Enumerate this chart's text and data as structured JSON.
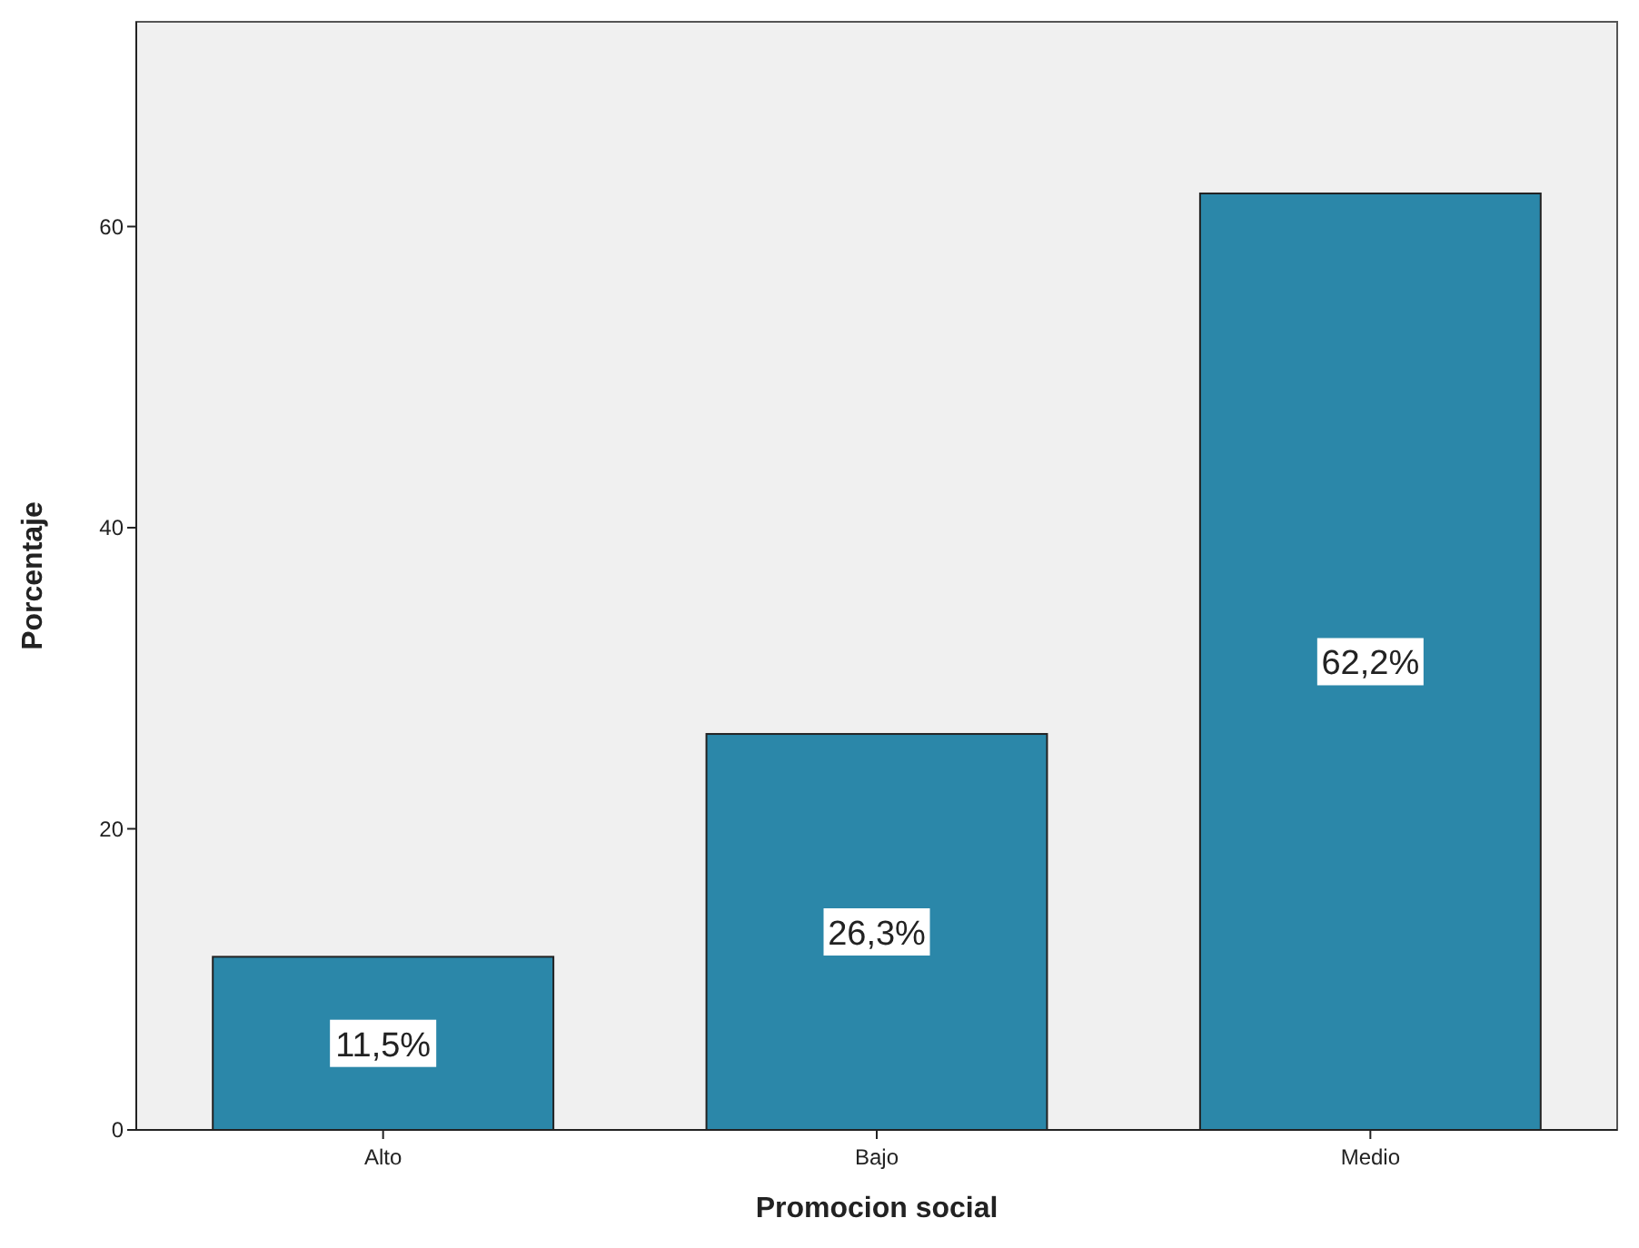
{
  "chart_data": {
    "type": "bar",
    "xlabel": "Promocion social",
    "ylabel": "Porcentaje",
    "categories": [
      "Alto",
      "Bajo",
      "Medio"
    ],
    "values": [
      11.5,
      26.3,
      62.2
    ],
    "value_labels": [
      "11,5%",
      "26,3%",
      "62,2%"
    ],
    "color": "#2b87a9",
    "ylim": [
      0,
      73.6
    ],
    "yticks": [
      0,
      20,
      40,
      60
    ],
    "grid": false
  }
}
